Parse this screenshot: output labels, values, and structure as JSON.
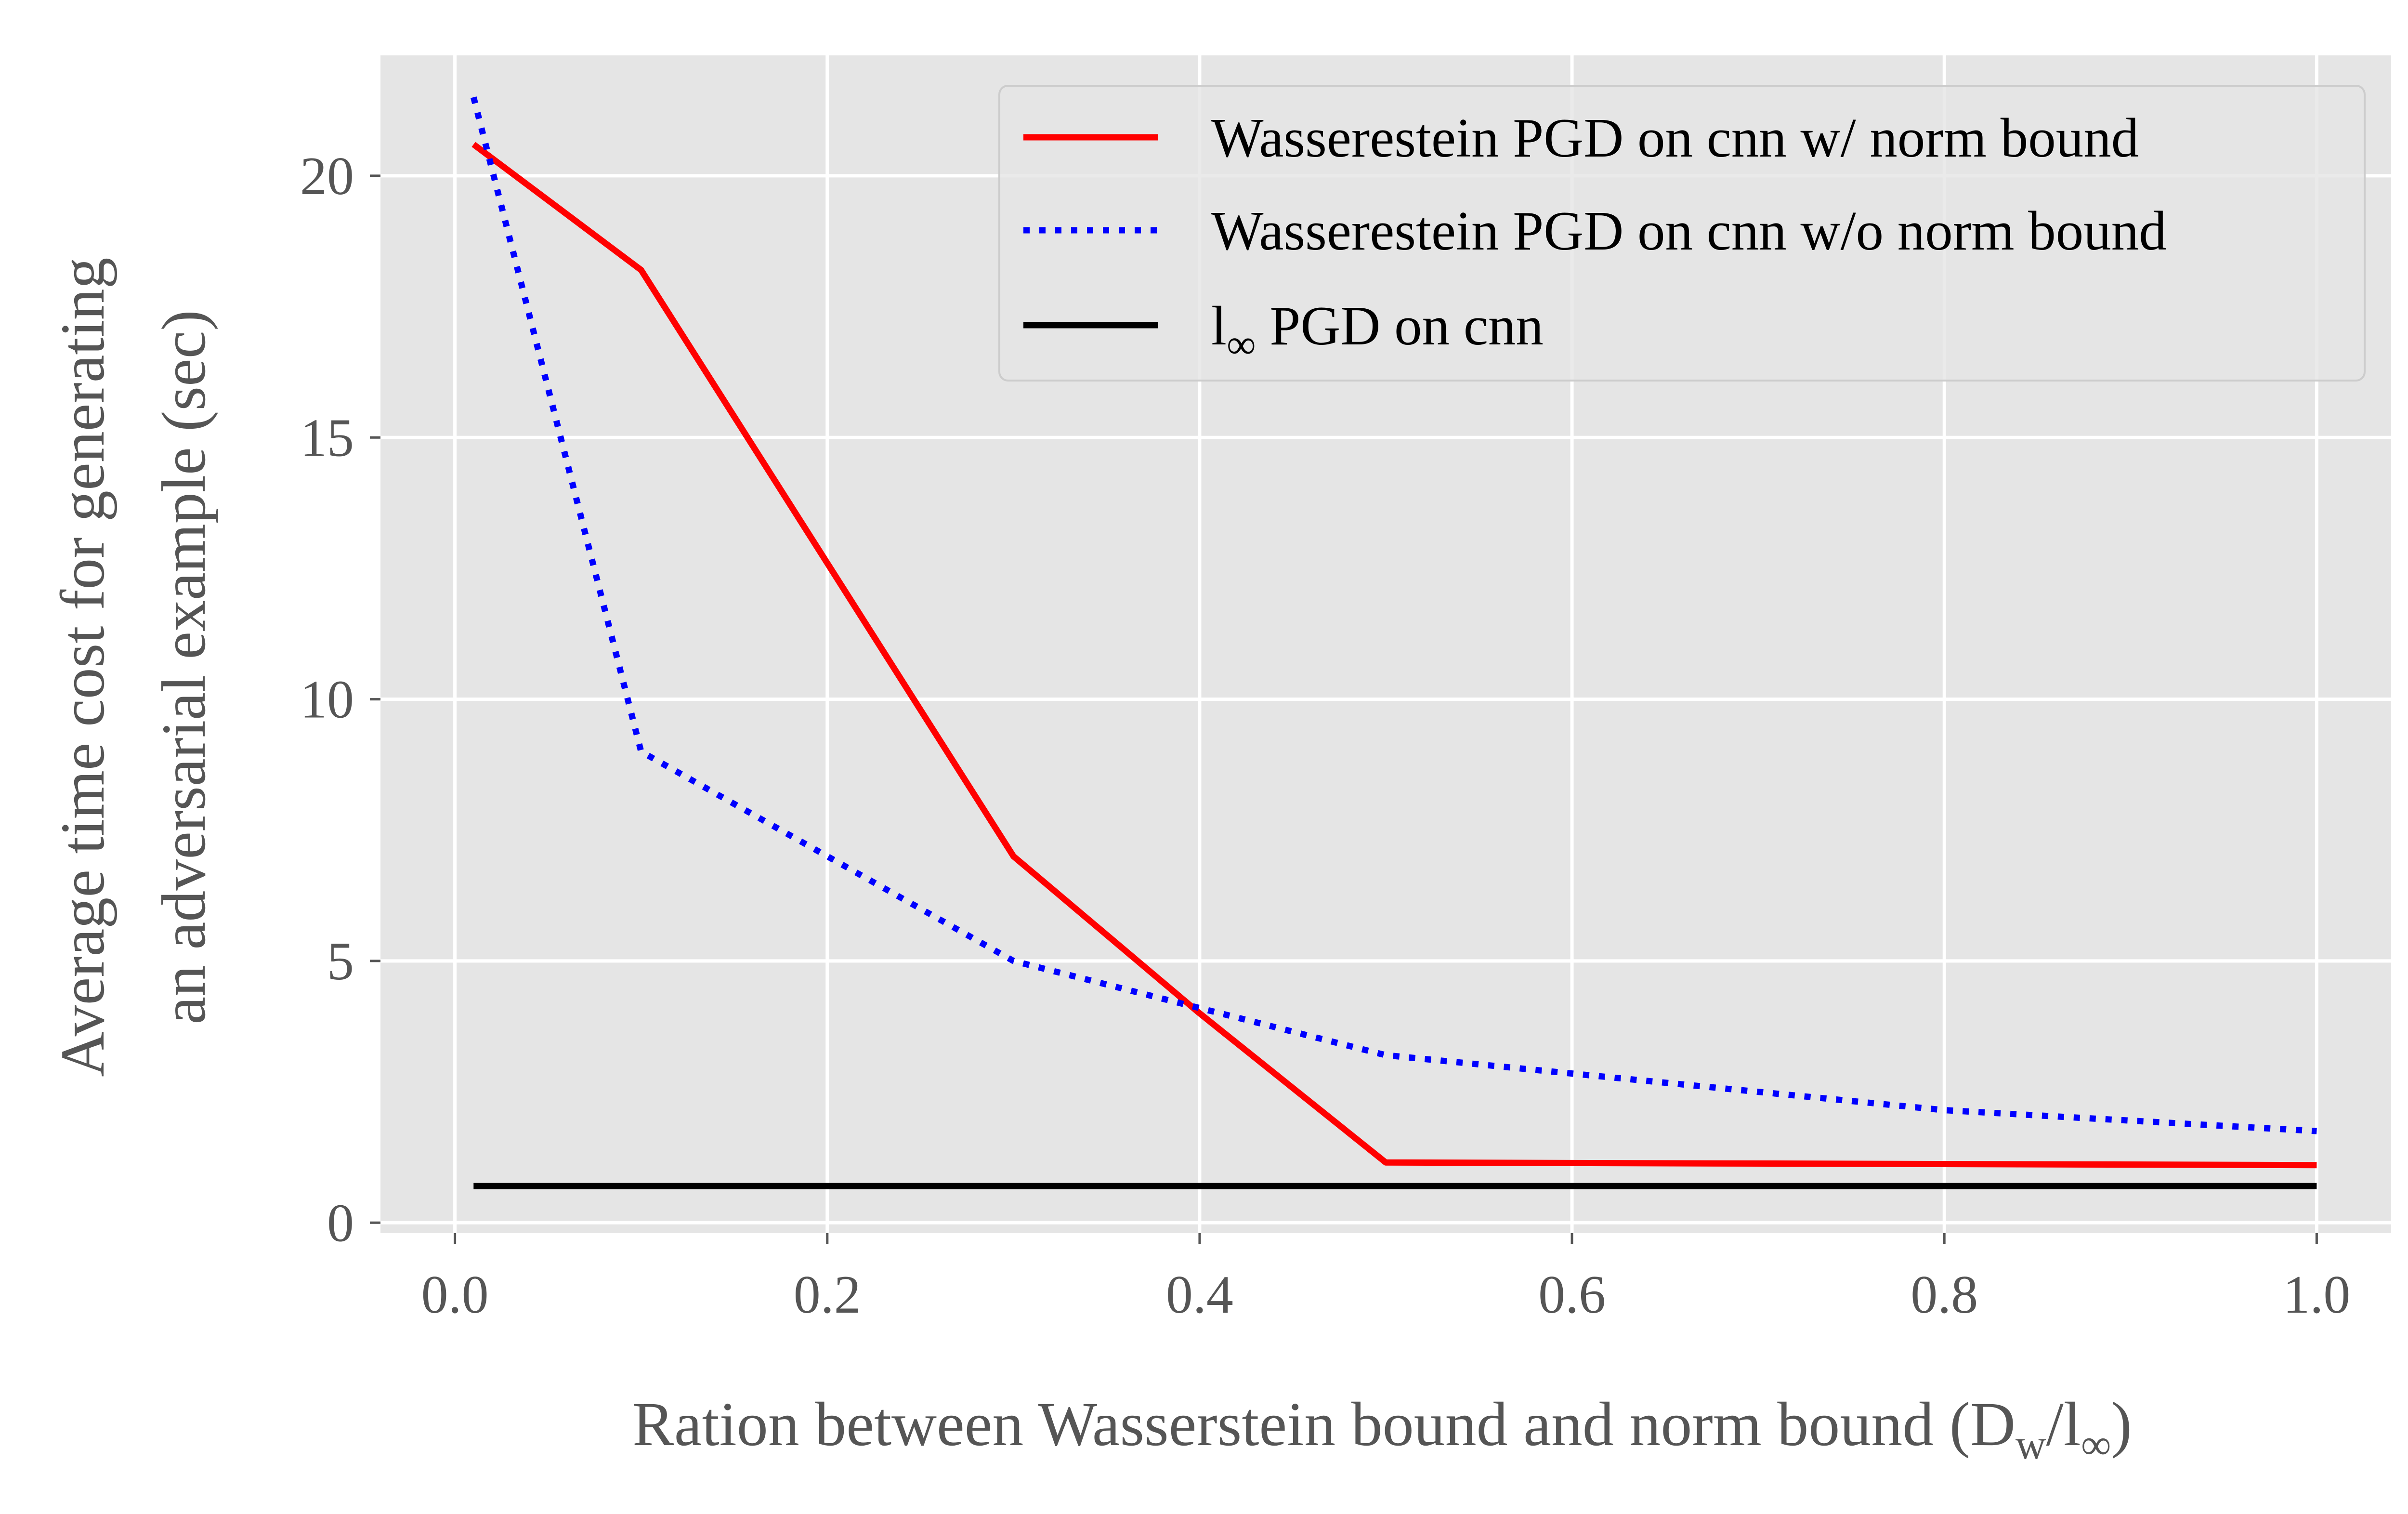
{
  "chart_data": {
    "type": "line",
    "title": "",
    "xlabel": {
      "main": "Ration between Wasserstein bound and norm bound (D",
      "sub1": "w",
      "mid": "/l",
      "sub2": "∞",
      "end": ")"
    },
    "ylabel": {
      "line1": "Average time cost for generating",
      "line2": "an adversarial example (sec)"
    },
    "xlim": [
      -0.04,
      1.04
    ],
    "ylim": [
      -0.2,
      22.3
    ],
    "xticks": [
      0.0,
      0.2,
      0.4,
      0.6,
      0.8,
      1.0
    ],
    "xtick_labels": [
      "0.0",
      "0.2",
      "0.4",
      "0.6",
      "0.8",
      "1.0"
    ],
    "yticks": [
      0,
      5,
      10,
      15,
      20
    ],
    "ytick_labels": [
      "0",
      "5",
      "10",
      "15",
      "20"
    ],
    "grid": true,
    "legend_position": "top-right",
    "series": [
      {
        "name": "Wasserestein PGD on cnn w/ norm bound",
        "legend_label": "Wasserestein PGD on cnn w/ norm bound",
        "color": "#ff0000",
        "style": "solid",
        "x": [
          0.01,
          0.1,
          0.2,
          0.3,
          0.4,
          0.5,
          1.0
        ],
        "y": [
          20.6,
          18.2,
          12.6,
          7.0,
          4.0,
          1.15,
          1.1
        ]
      },
      {
        "name": "Wasserestein PGD on cnn w/o norm bound",
        "legend_label": "Wasserestein PGD on cnn w/o norm bound",
        "color": "#0000ff",
        "style": "dotted",
        "x": [
          0.01,
          0.1,
          0.2,
          0.3,
          0.4,
          0.5,
          0.6,
          0.7,
          0.8,
          0.9,
          1.0
        ],
        "y": [
          21.5,
          9.0,
          7.0,
          5.0,
          4.1,
          3.2,
          2.85,
          2.5,
          2.15,
          1.95,
          1.75
        ]
      },
      {
        "name": "l∞ PGD on cnn",
        "legend_label": "l",
        "legend_sub": "∞",
        "legend_rest": " PGD on cnn",
        "color": "#000000",
        "style": "solid",
        "x": [
          0.01,
          1.0
        ],
        "y": [
          0.7,
          0.7
        ]
      }
    ]
  }
}
